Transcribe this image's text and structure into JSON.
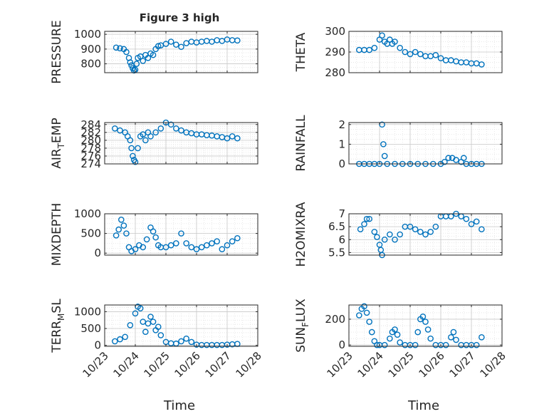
{
  "figure": {
    "title": "Figure 3 high",
    "xlabel": "Time",
    "x_tick_labels": [
      "10/23",
      "10/24",
      "10/25",
      "10/26",
      "10/27",
      "10/28"
    ],
    "marker_color": "#0072BD"
  },
  "chart_data": [
    {
      "type": "scatter",
      "ylabel": "PRESSURE",
      "ylim": [
        740,
        1020
      ],
      "yticks": [
        800,
        900,
        1000
      ],
      "grid": true,
      "x": [
        "10/23 09:00",
        "10/23 12:00",
        "10/23 15:00",
        "10/23 17:00",
        "10/23 19:00",
        "10/23 20:00",
        "10/23 21:00",
        "10/23 22:00",
        "10/23 23:00",
        "10/24 00:00",
        "10/24 01:00",
        "10/24 02:00",
        "10/24 04:00",
        "10/24 06:00",
        "10/24 08:00",
        "10/24 10:00",
        "10/24 12:00",
        "10/24 14:00",
        "10/24 16:00",
        "10/24 18:00",
        "10/24 20:00",
        "10/25 00:00",
        "10/25 04:00",
        "10/25 08:00",
        "10/25 12:00",
        "10/25 16:00",
        "10/25 20:00",
        "10/26 00:00",
        "10/26 04:00",
        "10/26 08:00",
        "10/26 12:00",
        "10/26 16:00",
        "10/26 20:00",
        "10/27 00:00",
        "10/27 04:00",
        "10/27 08:00"
      ],
      "y": [
        910,
        905,
        900,
        880,
        840,
        810,
        790,
        770,
        755,
        760,
        800,
        840,
        850,
        820,
        860,
        840,
        870,
        860,
        900,
        920,
        925,
        935,
        950,
        930,
        915,
        940,
        950,
        945,
        950,
        955,
        950,
        960,
        955,
        965,
        960,
        958
      ]
    },
    {
      "type": "scatter",
      "ylabel": "THETA",
      "ylim": [
        280,
        300
      ],
      "yticks": [
        280,
        290,
        300
      ],
      "grid": true,
      "x": [
        "10/23 08:00",
        "10/23 12:00",
        "10/23 16:00",
        "10/23 20:00",
        "10/24 00:00",
        "10/24 02:00",
        "10/24 04:00",
        "10/24 06:00",
        "10/24 08:00",
        "10/24 10:00",
        "10/24 12:00",
        "10/24 16:00",
        "10/24 20:00",
        "10/25 00:00",
        "10/25 04:00",
        "10/25 08:00",
        "10/25 12:00",
        "10/25 16:00",
        "10/25 20:00",
        "10/26 00:00",
        "10/26 04:00",
        "10/26 08:00",
        "10/26 12:00",
        "10/26 16:00",
        "10/26 20:00",
        "10/27 00:00",
        "10/27 04:00",
        "10/27 08:00"
      ],
      "y": [
        291,
        291,
        291,
        292,
        296,
        298,
        295,
        294,
        296,
        294,
        295,
        292,
        290,
        289,
        290,
        289,
        288,
        288,
        288.5,
        287,
        286,
        286,
        285.5,
        285,
        285,
        284.5,
        284.5,
        284
      ]
    },
    {
      "type": "scatter",
      "ylabel": "AIR_TEMP",
      "ylim": [
        274,
        284.5
      ],
      "yticks": [
        274,
        276,
        278,
        280,
        282,
        284
      ],
      "grid": true,
      "x": [
        "10/23 08:00",
        "10/23 12:00",
        "10/23 16:00",
        "10/23 18:00",
        "10/23 20:00",
        "10/23 21:00",
        "10/23 22:00",
        "10/23 23:00",
        "10/24 00:00",
        "10/24 02:00",
        "10/24 04:00",
        "10/24 06:00",
        "10/24 08:00",
        "10/24 10:00",
        "10/24 12:00",
        "10/24 16:00",
        "10/24 20:00",
        "10/25 00:00",
        "10/25 04:00",
        "10/25 08:00",
        "10/25 12:00",
        "10/25 16:00",
        "10/25 20:00",
        "10/26 00:00",
        "10/26 04:00",
        "10/26 08:00",
        "10/26 12:00",
        "10/26 16:00",
        "10/26 20:00",
        "10/27 00:00",
        "10/27 04:00",
        "10/27 08:00"
      ],
      "y": [
        283,
        282.5,
        282,
        281,
        280,
        278,
        276,
        275,
        274.5,
        278,
        281,
        281.5,
        280,
        282,
        281,
        282,
        283,
        284.5,
        284,
        283,
        282.5,
        282,
        281.8,
        281.5,
        281.5,
        281.3,
        281.2,
        281,
        280.8,
        280.5,
        281,
        280.5
      ]
    },
    {
      "type": "scatter",
      "ylabel": "RAINFALL",
      "ylim": [
        0,
        2.1
      ],
      "yticks": [
        0,
        1,
        2
      ],
      "grid": true,
      "x": [
        "10/23 08:00",
        "10/23 12:00",
        "10/23 16:00",
        "10/23 20:00",
        "10/24 00:00",
        "10/24 02:00",
        "10/24 03:00",
        "10/24 04:00",
        "10/24 06:00",
        "10/24 12:00",
        "10/24 18:00",
        "10/25 00:00",
        "10/25 06:00",
        "10/25 12:00",
        "10/25 18:00",
        "10/26 00:00",
        "10/26 03:00",
        "10/26 06:00",
        "10/26 09:00",
        "10/26 12:00",
        "10/26 16:00",
        "10/26 18:00",
        "10/26 20:00",
        "10/27 00:00",
        "10/27 04:00",
        "10/27 08:00"
      ],
      "y": [
        0,
        0,
        0,
        0,
        0,
        2,
        1,
        0.4,
        0,
        0,
        0,
        0,
        0,
        0,
        0,
        0,
        0.1,
        0.3,
        0.3,
        0.2,
        0.1,
        0.3,
        0,
        0,
        0,
        0
      ]
    },
    {
      "type": "scatter",
      "ylabel": "MIXDEPTH",
      "ylim": [
        -50,
        1000
      ],
      "yticks": [
        0,
        500,
        1000
      ],
      "grid": true,
      "x": [
        "10/23 09:00",
        "10/23 11:00",
        "10/23 13:00",
        "10/23 15:00",
        "10/23 17:00",
        "10/23 19:00",
        "10/23 21:00",
        "10/24 00:00",
        "10/24 03:00",
        "10/24 06:00",
        "10/24 09:00",
        "10/24 12:00",
        "10/24 14:00",
        "10/24 16:00",
        "10/24 18:00",
        "10/24 20:00",
        "10/25 00:00",
        "10/25 04:00",
        "10/25 08:00",
        "10/25 12:00",
        "10/25 16:00",
        "10/25 20:00",
        "10/26 00:00",
        "10/26 04:00",
        "10/26 08:00",
        "10/26 12:00",
        "10/26 16:00",
        "10/26 20:00",
        "10/27 00:00",
        "10/27 04:00",
        "10/27 08:00"
      ],
      "y": [
        450,
        600,
        850,
        700,
        500,
        150,
        50,
        100,
        200,
        150,
        350,
        650,
        550,
        400,
        200,
        150,
        150,
        200,
        250,
        500,
        250,
        150,
        100,
        150,
        200,
        250,
        300,
        100,
        200,
        300,
        380
      ]
    },
    {
      "type": "scatter",
      "ylabel": "H2OMIXRA",
      "ylim": [
        5.4,
        7
      ],
      "yticks": [
        5.5,
        6,
        6.5,
        7
      ],
      "grid": true,
      "x": [
        "10/23 09:00",
        "10/23 12:00",
        "10/23 14:00",
        "10/23 16:00",
        "10/23 20:00",
        "10/23 22:00",
        "10/24 00:00",
        "10/24 01:00",
        "10/24 02:00",
        "10/24 04:00",
        "10/24 08:00",
        "10/24 12:00",
        "10/24 16:00",
        "10/24 20:00",
        "10/25 00:00",
        "10/25 04:00",
        "10/25 08:00",
        "10/25 12:00",
        "10/25 16:00",
        "10/25 20:00",
        "10/26 00:00",
        "10/26 04:00",
        "10/26 08:00",
        "10/26 12:00",
        "10/26 16:00",
        "10/26 20:00",
        "10/27 00:00",
        "10/27 04:00",
        "10/27 08:00"
      ],
      "y": [
        6.4,
        6.6,
        6.8,
        6.8,
        6.3,
        6.1,
        5.8,
        5.6,
        5.4,
        6.0,
        6.2,
        6.0,
        6.2,
        6.5,
        6.5,
        6.4,
        6.3,
        6.2,
        6.3,
        6.5,
        6.9,
        6.9,
        6.9,
        7.0,
        6.9,
        6.8,
        6.6,
        6.7,
        6.4
      ]
    },
    {
      "type": "scatter",
      "ylabel": "TERR_MSL",
      "ylim": [
        -30,
        1200
      ],
      "yticks": [
        0,
        500,
        1000
      ],
      "grid": true,
      "x": [
        "10/23 08:00",
        "10/23 12:00",
        "10/23 16:00",
        "10/23 20:00",
        "10/24 00:00",
        "10/24 02:00",
        "10/24 04:00",
        "10/24 06:00",
        "10/24 08:00",
        "10/24 10:00",
        "10/24 12:00",
        "10/24 14:00",
        "10/24 16:00",
        "10/24 18:00",
        "10/24 20:00",
        "10/25 00:00",
        "10/25 04:00",
        "10/25 08:00",
        "10/25 12:00",
        "10/25 16:00",
        "10/25 20:00",
        "10/26 00:00",
        "10/26 04:00",
        "10/26 08:00",
        "10/26 12:00",
        "10/26 16:00",
        "10/26 20:00",
        "10/27 00:00",
        "10/27 04:00",
        "10/27 08:00"
      ],
      "y": [
        120,
        180,
        250,
        600,
        950,
        1150,
        1100,
        700,
        400,
        650,
        850,
        700,
        450,
        550,
        300,
        100,
        60,
        50,
        120,
        200,
        100,
        20,
        10,
        10,
        10,
        10,
        10,
        20,
        30,
        40
      ]
    },
    {
      "type": "scatter",
      "ylabel": "SUN_FLUX",
      "ylim": [
        -10,
        310
      ],
      "yticks": [
        0,
        200
      ],
      "grid": true,
      "x": [
        "10/23 08:00",
        "10/23 10:00",
        "10/23 12:00",
        "10/23 14:00",
        "10/23 16:00",
        "10/23 18:00",
        "10/23 20:00",
        "10/23 22:00",
        "10/24 00:00",
        "10/24 04:00",
        "10/24 08:00",
        "10/24 10:00",
        "10/24 12:00",
        "10/24 14:00",
        "10/24 16:00",
        "10/24 20:00",
        "10/25 00:00",
        "10/25 04:00",
        "10/25 06:00",
        "10/25 08:00",
        "10/25 10:00",
        "10/25 12:00",
        "10/25 14:00",
        "10/25 16:00",
        "10/25 20:00",
        "10/26 00:00",
        "10/26 04:00",
        "10/26 08:00",
        "10/26 10:00",
        "10/26 12:00",
        "10/26 16:00",
        "10/26 20:00",
        "10/27 00:00",
        "10/27 04:00",
        "10/27 08:00"
      ],
      "y": [
        230,
        280,
        300,
        250,
        180,
        100,
        30,
        0,
        0,
        0,
        50,
        100,
        120,
        80,
        20,
        0,
        0,
        0,
        100,
        200,
        220,
        180,
        120,
        50,
        0,
        0,
        0,
        60,
        100,
        40,
        0,
        0,
        0,
        0,
        60
      ]
    }
  ]
}
